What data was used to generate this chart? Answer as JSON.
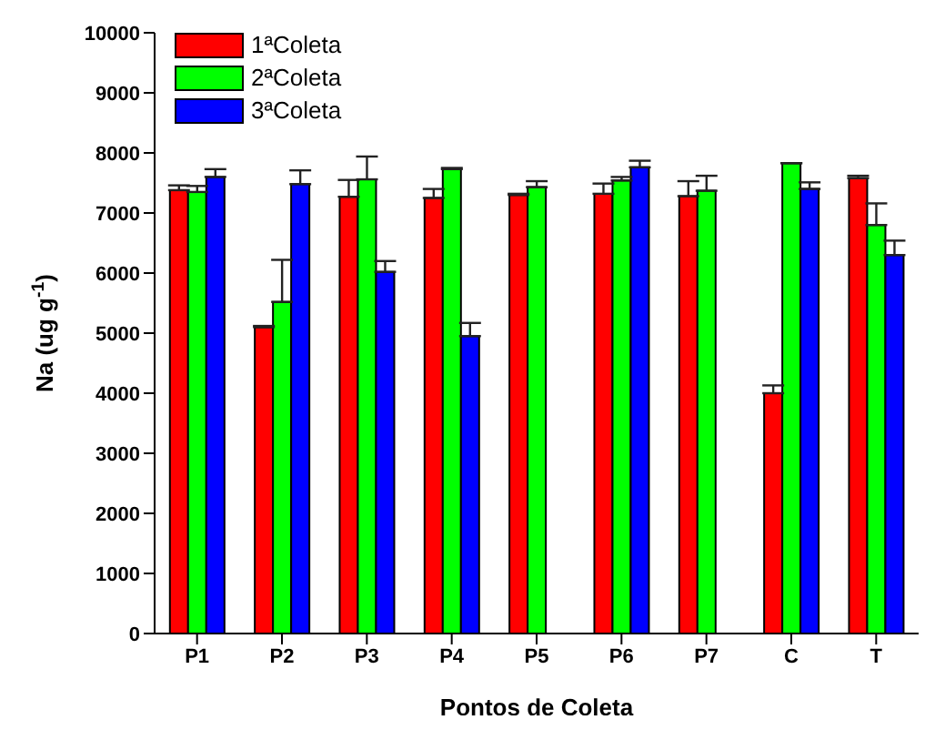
{
  "chart_data": {
    "type": "bar",
    "xlabel": "Pontos de Coleta",
    "ylabel": "Na (ug g$^{-1}$)",
    "categories": [
      "P1",
      "P2",
      "P3",
      "P4",
      "P5",
      "P6",
      "P7",
      "C",
      "T"
    ],
    "series": [
      {
        "name": "1ªColeta",
        "color": "#ff0000",
        "values": [
          7380,
          5100,
          7270,
          7250,
          7300,
          7320,
          7280,
          4000,
          7580
        ],
        "errors": [
          [
            7380,
            7460
          ],
          [
            5100,
            5120
          ],
          [
            7270,
            7550
          ],
          [
            7250,
            7400
          ],
          [
            7300,
            7320
          ],
          [
            7320,
            7490
          ],
          [
            7280,
            7530
          ],
          [
            4000,
            4130
          ],
          [
            7580,
            7620
          ]
        ]
      },
      {
        "name": "2ªColeta",
        "color": "#00ff00",
        "values": [
          7350,
          5520,
          7560,
          7730,
          7430,
          7540,
          7370,
          7830,
          6800
        ],
        "errors": [
          [
            7350,
            7450
          ],
          [
            5520,
            6220
          ],
          [
            7560,
            7940
          ],
          [
            7730,
            7750
          ],
          [
            7430,
            7530
          ],
          [
            7540,
            7600
          ],
          [
            7370,
            7620
          ],
          null,
          [
            6800,
            7160
          ]
        ]
      },
      {
        "name": "3ªColeta",
        "color": "#0000ff",
        "values": [
          7600,
          7480,
          6020,
          4950,
          null,
          7760,
          null,
          7400,
          6300
        ],
        "errors": [
          [
            7600,
            7730
          ],
          [
            7480,
            7710
          ],
          [
            6020,
            6200
          ],
          [
            4950,
            5170
          ],
          null,
          [
            7760,
            7870
          ],
          null,
          [
            7400,
            7510
          ],
          [
            6300,
            6540
          ]
        ]
      }
    ],
    "ylim": [
      0,
      10000
    ],
    "yticks": [
      0,
      1000,
      2000,
      3000,
      4000,
      5000,
      6000,
      7000,
      8000,
      9000,
      10000
    ],
    "legend": "top left"
  }
}
